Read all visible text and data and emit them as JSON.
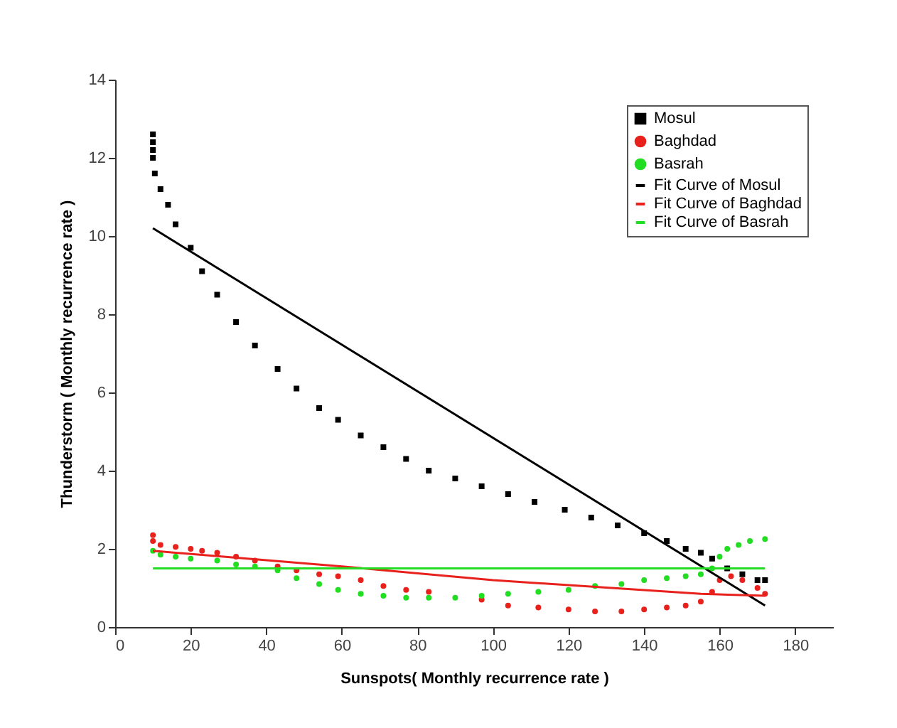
{
  "chart_data": {
    "type": "scatter",
    "xlabel": "Sunspots( Monthly recurrence rate )",
    "ylabel": "Thunderstorm ( Monthly recurrence rate )",
    "xlim": [
      0,
      190
    ],
    "ylim": [
      0,
      14
    ],
    "xticks": [
      0,
      20,
      40,
      60,
      80,
      100,
      120,
      140,
      160,
      180
    ],
    "yticks": [
      0,
      2,
      4,
      6,
      8,
      10,
      12,
      14
    ],
    "grid": false,
    "legend": "top right",
    "series": [
      {
        "name": "Mosul",
        "marker": "square",
        "color": "#000000",
        "x": [
          10,
          10,
          10,
          10,
          10.5,
          12,
          14,
          16,
          20,
          23,
          27,
          32,
          37,
          43,
          48,
          54,
          59,
          65,
          71,
          77,
          83,
          90,
          97,
          104,
          111,
          119,
          126,
          133,
          140,
          146,
          151,
          155,
          158,
          162,
          166,
          170,
          172
        ],
        "values": [
          12.6,
          12.4,
          12.2,
          12.0,
          11.6,
          11.2,
          10.8,
          10.3,
          9.7,
          9.1,
          8.5,
          7.8,
          7.2,
          6.6,
          6.1,
          5.6,
          5.3,
          4.9,
          4.6,
          4.3,
          4.0,
          3.8,
          3.6,
          3.4,
          3.2,
          3.0,
          2.8,
          2.6,
          2.4,
          2.2,
          2.0,
          1.9,
          1.75,
          1.5,
          1.35,
          1.2,
          1.2
        ]
      },
      {
        "name": "Baghdad",
        "marker": "circle",
        "color": "#e8211c",
        "x": [
          10,
          10,
          12,
          16,
          20,
          23,
          27,
          32,
          37,
          43,
          48,
          54,
          59,
          65,
          71,
          77,
          83,
          97,
          104,
          112,
          120,
          127,
          134,
          140,
          146,
          151,
          155,
          158,
          160,
          163,
          166,
          170,
          172
        ],
        "values": [
          2.35,
          2.2,
          2.1,
          2.05,
          2.0,
          1.95,
          1.9,
          1.8,
          1.7,
          1.55,
          1.45,
          1.35,
          1.3,
          1.2,
          1.05,
          0.95,
          0.9,
          0.7,
          0.55,
          0.5,
          0.45,
          0.4,
          0.4,
          0.45,
          0.5,
          0.55,
          0.65,
          0.9,
          1.2,
          1.3,
          1.2,
          1.0,
          0.85
        ]
      },
      {
        "name": "Basrah",
        "marker": "circle",
        "color": "#22dd22",
        "x": [
          10,
          12,
          16,
          20,
          27,
          32,
          37,
          43,
          48,
          54,
          59,
          65,
          71,
          77,
          83,
          90,
          97,
          104,
          112,
          120,
          127,
          134,
          140,
          146,
          151,
          155,
          158,
          160,
          162,
          165,
          168,
          172
        ],
        "values": [
          1.95,
          1.85,
          1.8,
          1.75,
          1.7,
          1.6,
          1.55,
          1.45,
          1.25,
          1.1,
          0.95,
          0.85,
          0.8,
          0.75,
          0.75,
          0.75,
          0.8,
          0.85,
          0.9,
          0.95,
          1.05,
          1.1,
          1.2,
          1.25,
          1.3,
          1.35,
          1.5,
          1.8,
          2.0,
          2.1,
          2.2,
          2.25
        ]
      },
      {
        "name": "Fit Curve of Mosul",
        "type": "line",
        "color": "#000000",
        "x": [
          10,
          172
        ],
        "values": [
          10.2,
          0.55
        ]
      },
      {
        "name": "Fit Curve of Baghdad",
        "type": "line",
        "color": "#e8211c",
        "x": [
          10,
          60,
          100,
          155,
          172
        ],
        "values": [
          1.95,
          1.55,
          1.2,
          0.85,
          0.8
        ]
      },
      {
        "name": "Fit Curve of Basrah",
        "type": "line",
        "color": "#22dd22",
        "x": [
          10,
          172
        ],
        "values": [
          1.5,
          1.5
        ]
      }
    ]
  }
}
